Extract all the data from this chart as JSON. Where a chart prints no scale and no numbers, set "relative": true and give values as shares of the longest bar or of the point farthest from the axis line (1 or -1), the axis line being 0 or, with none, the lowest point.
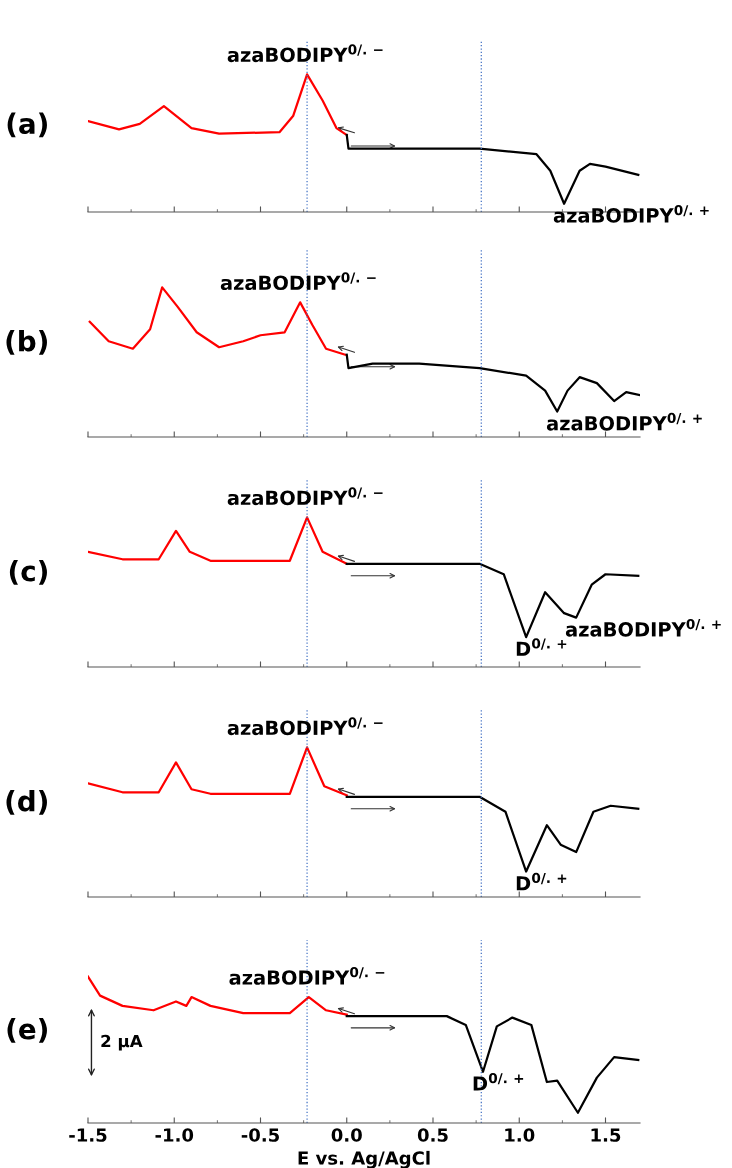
{
  "chart_data": [
    {
      "type": "line",
      "title": "(a)",
      "relative": true,
      "xlim": [
        -1.5,
        1.7
      ],
      "xticks": [
        -1.5,
        -1.0,
        -0.5,
        0.0,
        0.5,
        1.0,
        1.5
      ],
      "tick_labels": false,
      "grid": false,
      "series": [
        {
          "color": "#ff0000",
          "x": [
            -1.5,
            -1.32,
            -1.2,
            -1.06,
            -0.9,
            -0.74,
            -0.39,
            -0.31,
            -0.23,
            -0.14,
            -0.06,
            0.0
          ],
          "values": [
            0.66,
            0.6,
            0.64,
            0.77,
            0.61,
            0.57,
            0.58,
            0.7,
            1.0,
            0.81,
            0.61,
            0.56
          ]
        },
        {
          "color": "#000000",
          "x": [
            0.0,
            0.01,
            0.77,
            1.1,
            1.18,
            1.26,
            1.35,
            1.41,
            1.5,
            1.69
          ],
          "values": [
            0.56,
            0.46,
            0.46,
            0.42,
            0.3,
            0.06,
            0.3,
            0.35,
            0.33,
            0.27
          ]
        }
      ],
      "ref_lines": [
        {
          "axis": "x",
          "value": -0.23,
          "color": "#4472c4",
          "line_style": "dotted"
        },
        {
          "axis": "x",
          "value": 0.78,
          "color": "#4472c4",
          "line_style": "dotted"
        }
      ],
      "annotations": [
        {
          "text": "azaBODIPY$^{0/.−}$",
          "x": -0.23,
          "y": 1.0
        },
        {
          "text": "azaBODIPY$^{0/.+}$",
          "x": 1.26,
          "y": 0.06
        }
      ]
    },
    {
      "type": "line",
      "title": "(b)",
      "relative": true,
      "xlim": [
        -1.5,
        1.7
      ],
      "xticks": [
        -1.5,
        -1.0,
        -0.5,
        0.0,
        0.5,
        1.0,
        1.5
      ],
      "tick_labels": false,
      "grid": false,
      "series": [
        {
          "color": "#ff0000",
          "x": [
            -1.49,
            -1.38,
            -1.24,
            -1.14,
            -1.07,
            -0.98,
            -0.87,
            -0.74,
            -0.6,
            -0.5,
            -0.36,
            -0.27,
            -0.2,
            -0.12,
            -0.01
          ],
          "values": [
            0.77,
            0.64,
            0.59,
            0.72,
            1.0,
            0.87,
            0.7,
            0.6,
            0.64,
            0.68,
            0.7,
            0.9,
            0.75,
            0.59,
            0.55
          ]
        },
        {
          "color": "#000000",
          "x": [
            0.0,
            0.01,
            0.15,
            0.42,
            0.77,
            1.04,
            1.15,
            1.22,
            1.28,
            1.35,
            1.45,
            1.55,
            1.62,
            1.7
          ],
          "values": [
            0.55,
            0.46,
            0.49,
            0.49,
            0.46,
            0.41,
            0.31,
            0.17,
            0.31,
            0.4,
            0.36,
            0.24,
            0.3,
            0.28
          ]
        }
      ],
      "ref_lines": [
        {
          "axis": "x",
          "value": -0.23,
          "color": "#4472c4",
          "line_style": "dotted"
        },
        {
          "axis": "x",
          "value": 0.78,
          "color": "#4472c4",
          "line_style": "dotted"
        }
      ],
      "annotations": [
        {
          "text": "azaBODIPY$^{0/.−}$",
          "x": -0.27,
          "y": 0.9
        },
        {
          "text": "azaBODIPY$^{0/.+}$",
          "x": 1.22,
          "y": 0.17
        }
      ]
    },
    {
      "type": "line",
      "title": "(c)",
      "relative": true,
      "xlim": [
        -1.5,
        1.7
      ],
      "xticks": [
        -1.5,
        -1.0,
        -0.5,
        0.0,
        0.5,
        1.0,
        1.5
      ],
      "tick_labels": false,
      "grid": false,
      "series": [
        {
          "color": "#ff0000",
          "x": [
            -1.5,
            -1.3,
            -1.09,
            -0.99,
            -0.91,
            -0.79,
            -0.33,
            -0.23,
            -0.14,
            0.0
          ],
          "values": [
            0.77,
            0.72,
            0.72,
            0.91,
            0.77,
            0.71,
            0.71,
            1.0,
            0.77,
            0.69
          ]
        },
        {
          "color": "#000000",
          "x": [
            0.0,
            0.77,
            0.91,
            1.04,
            1.15,
            1.26,
            1.33,
            1.42,
            1.5,
            1.69
          ],
          "values": [
            0.69,
            0.69,
            0.62,
            0.2,
            0.5,
            0.36,
            0.33,
            0.55,
            0.62,
            0.61
          ]
        }
      ],
      "ref_lines": [
        {
          "axis": "x",
          "value": -0.23,
          "color": "#4472c4",
          "line_style": "dotted"
        },
        {
          "axis": "x",
          "value": 0.78,
          "color": "#4472c4",
          "line_style": "dotted"
        }
      ],
      "annotations": [
        {
          "text": "azaBODIPY$^{0/.−}$",
          "x": -0.23,
          "y": 1.0
        },
        {
          "text": "D$^{0/.+}$",
          "x": 1.04,
          "y": 0.2
        },
        {
          "text": "azaBODIPY$^{0/.+}$",
          "x": 1.33,
          "y": 0.33
        }
      ]
    },
    {
      "type": "line",
      "title": "(d)",
      "relative": true,
      "xlim": [
        -1.5,
        1.7
      ],
      "xticks": [
        -1.5,
        -1.0,
        -0.5,
        0.0,
        0.5,
        1.0,
        1.5
      ],
      "tick_labels": false,
      "grid": false,
      "series": [
        {
          "color": "#ff0000",
          "x": [
            -1.5,
            -1.3,
            -1.09,
            -0.99,
            -0.9,
            -0.79,
            -0.33,
            -0.23,
            -0.13,
            0.0
          ],
          "values": [
            0.76,
            0.7,
            0.7,
            0.9,
            0.72,
            0.69,
            0.69,
            1.0,
            0.74,
            0.68
          ]
        },
        {
          "color": "#000000",
          "x": [
            0.0,
            0.77,
            0.92,
            1.04,
            1.16,
            1.24,
            1.33,
            1.43,
            1.53,
            1.69
          ],
          "values": [
            0.67,
            0.67,
            0.57,
            0.17,
            0.48,
            0.35,
            0.3,
            0.57,
            0.61,
            0.59
          ]
        }
      ],
      "ref_lines": [
        {
          "axis": "x",
          "value": -0.23,
          "color": "#4472c4",
          "line_style": "dotted"
        },
        {
          "axis": "x",
          "value": 0.78,
          "color": "#4472c4",
          "line_style": "dotted"
        }
      ],
      "annotations": [
        {
          "text": "azaBODIPY$^{0/.−}$",
          "x": -0.23,
          "y": 1.0
        },
        {
          "text": "D$^{0/.+}$",
          "x": 1.04,
          "y": 0.17
        }
      ]
    },
    {
      "type": "line",
      "title": "(e)",
      "relative": true,
      "xlim": [
        -1.5,
        1.7
      ],
      "xticks": [
        {
          "value": -1.5,
          "label": "-1.5"
        },
        {
          "value": -1.0,
          "label": "-1.0"
        },
        {
          "value": -0.5,
          "label": "-0.5"
        },
        {
          "value": 0.0,
          "label": "0.0"
        },
        {
          "value": 0.5,
          "label": "0.5"
        },
        {
          "value": 1.0,
          "label": "1.0"
        },
        {
          "value": 1.5,
          "label": "1.5"
        }
      ],
      "tick_labels": "x",
      "grid": false,
      "xlabel": "E vs. Ag/AgCl",
      "series": [
        {
          "color": "#ff0000",
          "x": [
            -1.5,
            -1.43,
            -1.3,
            -1.12,
            -0.99,
            -0.93,
            -0.9,
            -0.79,
            -0.6,
            -0.33,
            -0.22,
            -0.12,
            0.0
          ],
          "values": [
            1.0,
            0.87,
            0.8,
            0.77,
            0.83,
            0.8,
            0.86,
            0.8,
            0.75,
            0.75,
            0.86,
            0.77,
            0.74
          ]
        },
        {
          "color": "#000000",
          "x": [
            0.0,
            0.58,
            0.69,
            0.79,
            0.87,
            0.96,
            1.07,
            1.16,
            1.22,
            1.34,
            1.45,
            1.55,
            1.69
          ],
          "values": [
            0.73,
            0.73,
            0.67,
            0.35,
            0.66,
            0.72,
            0.67,
            0.28,
            0.29,
            0.07,
            0.31,
            0.45,
            0.43
          ]
        }
      ],
      "ref_lines": [
        {
          "axis": "x",
          "value": -0.23,
          "color": "#4472c4",
          "line_style": "dotted"
        },
        {
          "axis": "x",
          "value": 0.78,
          "color": "#4472c4",
          "line_style": "dotted"
        }
      ],
      "annotations": [
        {
          "text": "azaBODIPY$^{0/.−}$",
          "x": -0.22,
          "y": 0.86
        },
        {
          "text": "D$^{0/.+}$",
          "x": 0.79,
          "y": 0.35
        },
        "2 µA"
      ]
    }
  ]
}
